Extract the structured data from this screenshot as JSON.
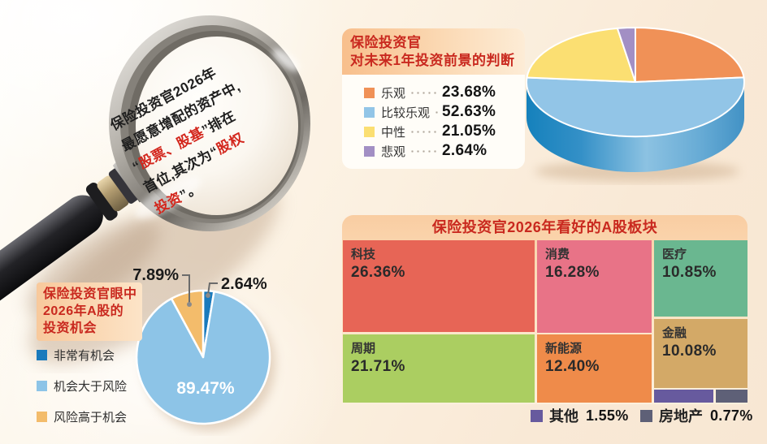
{
  "colors": {
    "title_red": "#c9291f"
  },
  "magnifier": {
    "lines": [
      [
        {
          "t": "保险投资官2026年",
          "red": false
        }
      ],
      [
        {
          "t": "最愿意增配的资产中,",
          "red": false
        }
      ],
      [
        {
          "t": "“",
          "red": false
        },
        {
          "t": "股票、股基",
          "red": true
        },
        {
          "t": "”排在",
          "red": false
        }
      ],
      [
        {
          "t": "首位,其次为“",
          "red": false
        },
        {
          "t": "股权",
          "red": true
        }
      ],
      [
        {
          "t": "投资",
          "red": true
        },
        {
          "t": "”。",
          "red": false
        }
      ]
    ]
  },
  "chart_data": [
    {
      "id": "outlook",
      "type": "pie",
      "style": "3d",
      "title_lines": [
        "保险投资官",
        "对未来1年投资前景的判断"
      ],
      "legend_position": "left",
      "start_angle_deg": 0,
      "clockwise": true,
      "slices": [
        {
          "label": "乐观",
          "value": 23.68,
          "value_label": "23.68%",
          "color": "#f09157"
        },
        {
          "label": "比较乐观",
          "value": 52.63,
          "value_label": "52.63%",
          "color": "#92c5e7"
        },
        {
          "label": "中性",
          "value": 21.05,
          "value_label": "21.05%",
          "color": "#fbdf72"
        },
        {
          "label": "悲观",
          "value": 2.64,
          "value_label": "2.64%",
          "color": "#a28fc4"
        }
      ]
    },
    {
      "id": "opportunity",
      "type": "pie",
      "style": "2d",
      "title_lines": [
        "保险投资官眼中",
        "2026年A股的",
        "投资机会"
      ],
      "legend_position": "left",
      "start_angle_deg": 0,
      "clockwise": true,
      "slices": [
        {
          "label": "非常有机会",
          "value": 2.64,
          "value_label": "2.64%",
          "color": "#1a7abc",
          "annotation": "callout"
        },
        {
          "label": "机会大于风险",
          "value": 89.47,
          "value_label": "89.47%",
          "color": "#8dc4e7",
          "annotation": "inside"
        },
        {
          "label": "风险高于机会",
          "value": 7.89,
          "value_label": "7.89%",
          "color": "#f3bc6b",
          "annotation": "callout"
        }
      ]
    },
    {
      "id": "sectors",
      "type": "treemap",
      "title": "保险投资官2026年看好的A股板块",
      "blocks": [
        {
          "label": "科技",
          "value": 26.36,
          "value_label": "26.36%",
          "color": "#e76556"
        },
        {
          "label": "消费",
          "value": 16.28,
          "value_label": "16.28%",
          "color": "#e87387"
        },
        {
          "label": "医疗",
          "value": 10.85,
          "value_label": "10.85%",
          "color": "#6ab790"
        },
        {
          "label": "周期",
          "value": 21.71,
          "value_label": "21.71%",
          "color": "#abce61"
        },
        {
          "label": "新能源",
          "value": 12.4,
          "value_label": "12.40%",
          "color": "#ef8b4a"
        },
        {
          "label": "金融",
          "value": 10.08,
          "value_label": "10.08%",
          "color": "#d3a967"
        },
        {
          "label": "其他",
          "value": 1.55,
          "value_label": "1.55%",
          "color": "#675a9e"
        },
        {
          "label": "房地产",
          "value": 0.77,
          "value_label": "0.77%",
          "color": "#5e6077"
        }
      ]
    }
  ]
}
